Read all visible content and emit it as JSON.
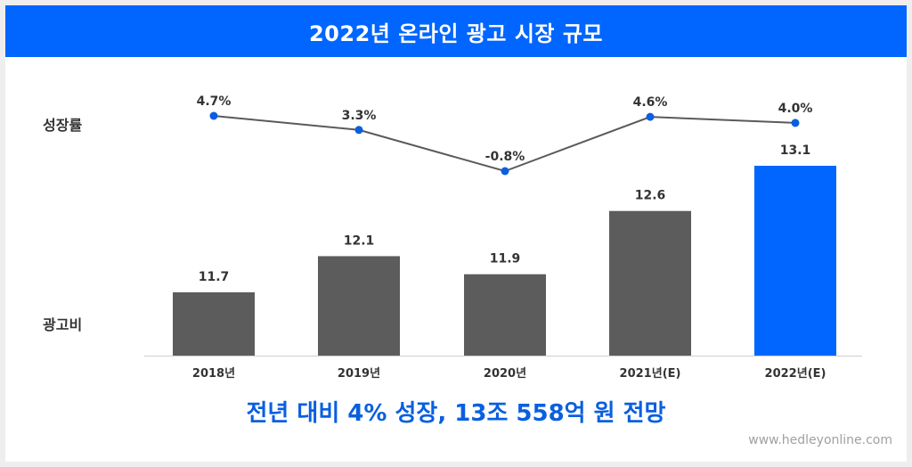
{
  "header": {
    "title": "2022년 온라인 광고 시장 규모"
  },
  "row_labels": {
    "growth": "성장률",
    "ad_spend": "광고비"
  },
  "headline": "전년 대비 4% 성장, 13조 558억 원 전망",
  "watermark": "www.hedleyonline.com",
  "colors": {
    "header": "#0066ff",
    "bar": "#5c5c5c",
    "highlight_bar": "#0066ff",
    "line": "#5a5a5a",
    "point": "#0a5fe0",
    "headline": "#0a5fe0"
  },
  "chart_data": [
    {
      "type": "bar",
      "categories": [
        "2018년",
        "2019년",
        "2020년",
        "2021년(E)",
        "2022년(E)"
      ],
      "values": [
        11.7,
        12.1,
        11.9,
        12.6,
        13.1
      ],
      "data_labels": [
        "11.7",
        "12.1",
        "11.9",
        "12.6",
        "13.1"
      ],
      "highlight_index": 4,
      "ylabel": "광고비",
      "ylim": [
        11.0,
        13.1
      ]
    },
    {
      "type": "line",
      "categories": [
        "2018년",
        "2019년",
        "2020년",
        "2021년(E)",
        "2022년(E)"
      ],
      "values": [
        4.7,
        3.3,
        -0.8,
        4.6,
        4.0
      ],
      "data_labels": [
        "4.7%",
        "3.3%",
        "-0.8%",
        "4.6%",
        "4.0%"
      ],
      "ylabel": "성장률",
      "unit": "%"
    }
  ]
}
